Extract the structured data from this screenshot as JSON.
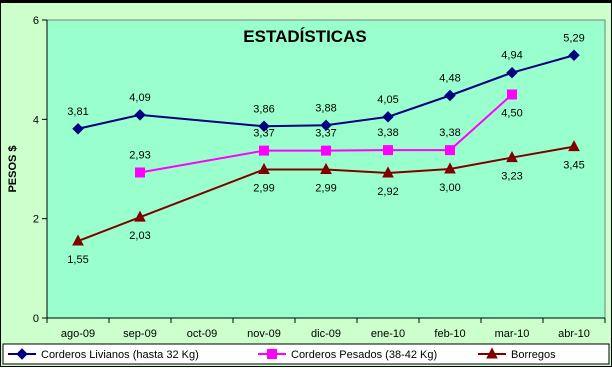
{
  "chart_data": {
    "type": "line",
    "title": "ESTADÍSTICAS",
    "ylabel": "PESOS $",
    "xlabel": "",
    "categories": [
      "ago-09",
      "sep-09",
      "oct-09",
      "nov-09",
      "dic-09",
      "ene-10",
      "feb-10",
      "mar-10",
      "abr-10"
    ],
    "ylim": [
      0,
      6
    ],
    "yticks": [
      0,
      2,
      4,
      6
    ],
    "grid": false,
    "legend_position": "bottom",
    "plot_background": "#99ffcc",
    "outer_background": "#ccffcc",
    "series": [
      {
        "name": "Corderos Livianos (hasta 32 Kg)",
        "color": "#000080",
        "marker": "diamond",
        "values": [
          3.81,
          4.09,
          null,
          3.86,
          3.88,
          4.05,
          4.48,
          4.94,
          5.29
        ],
        "labels": [
          "3,81",
          "4,09",
          null,
          "3,86",
          "3,88",
          "4,05",
          "4,48",
          "4,94",
          "5,29"
        ]
      },
      {
        "name": "Corderos Pesados (38-42 Kg)",
        "color": "#ff00ff",
        "marker": "square",
        "values": [
          null,
          2.93,
          null,
          3.37,
          3.37,
          3.38,
          3.38,
          4.5,
          null
        ],
        "labels": [
          null,
          "2,93",
          null,
          "3,37",
          "3,37",
          "3,38",
          "3,38",
          "4,50",
          null
        ]
      },
      {
        "name": "Borregos",
        "color": "#800000",
        "marker": "triangle",
        "values": [
          1.55,
          2.03,
          null,
          2.99,
          2.99,
          2.92,
          3.0,
          3.23,
          3.45
        ],
        "labels": [
          "1,55",
          "2,03",
          null,
          "2,99",
          "2,99",
          "2,92",
          "3,00",
          "3,23",
          "3,45"
        ]
      }
    ]
  }
}
